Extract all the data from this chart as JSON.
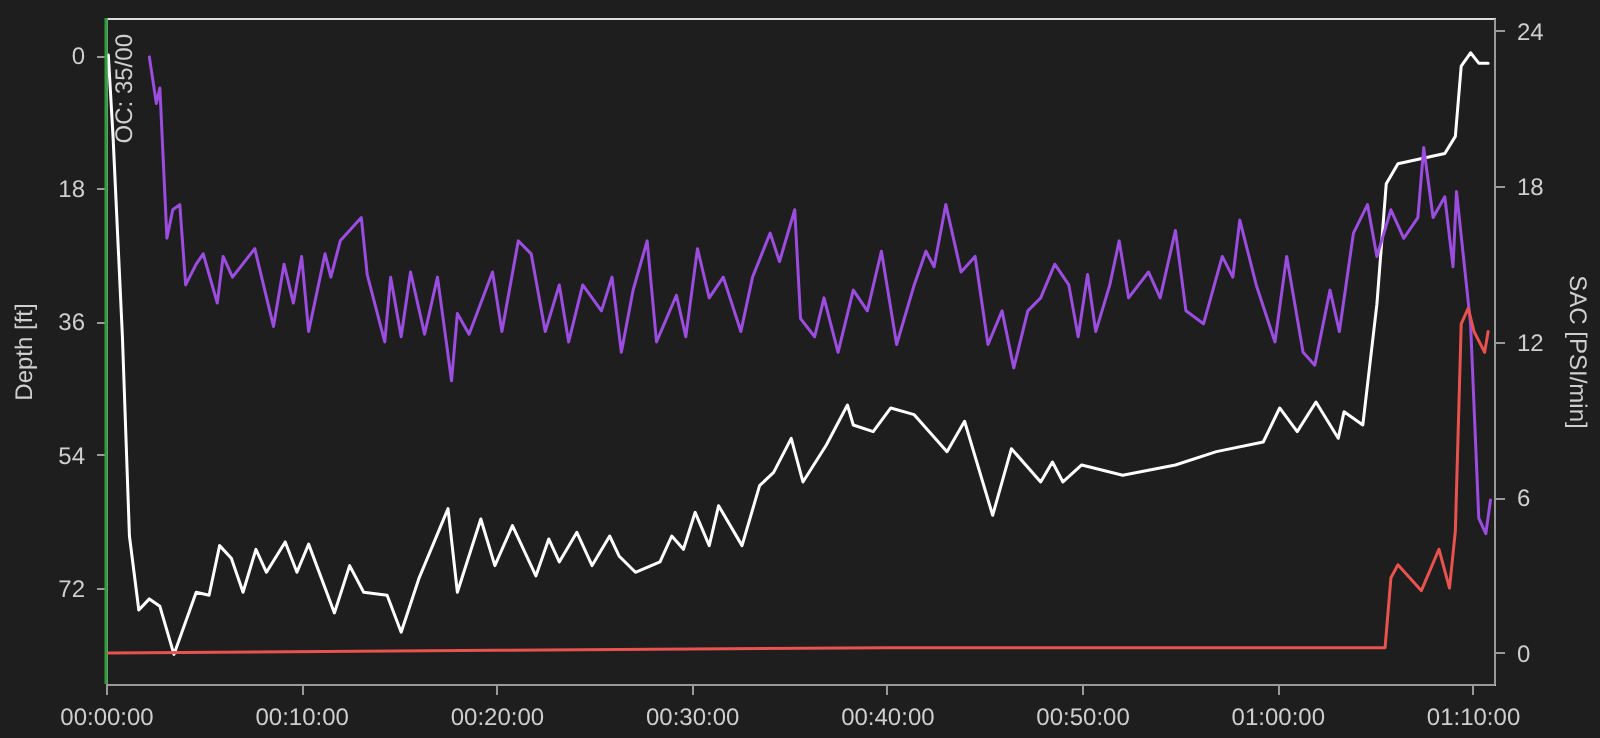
{
  "chart_data": {
    "type": "line",
    "xlabel": null,
    "ylabel": "Depth [ft]",
    "y2label": "SAC [PSI/min]",
    "xlim": [
      0,
      1.185
    ],
    "xticks": [
      {
        "value": 0,
        "label": "00:00:00"
      },
      {
        "value": 0.16667,
        "label": "00:10:00"
      },
      {
        "value": 0.33333,
        "label": "00:20:00"
      },
      {
        "value": 0.5,
        "label": "00:30:00"
      },
      {
        "value": 0.66667,
        "label": "00:40:00"
      },
      {
        "value": 0.83333,
        "label": "00:50:00"
      },
      {
        "value": 1,
        "label": "01:00:00"
      },
      {
        "value": 1.16667,
        "label": "01:10:00"
      }
    ],
    "ylim": [
      85,
      -5
    ],
    "yticks": [
      0,
      18,
      36,
      54,
      72
    ],
    "y2lim": [
      -1.2,
      24.5
    ],
    "y2ticks": [
      0,
      6,
      12,
      18,
      24
    ],
    "grid": false,
    "marker": "none",
    "line_style": "solid",
    "ref_lines": [
      {
        "axis": "x",
        "value": 0,
        "label": "OC: 35/00",
        "color": "#2e9e3a"
      }
    ],
    "series": [
      {
        "color": "#ffffff",
        "axis": "y",
        "x": [
          0.002,
          0.006,
          0.014,
          0.02,
          0.028,
          0.037,
          0.046,
          0.058,
          0.077,
          0.088,
          0.097,
          0.107,
          0.117,
          0.128,
          0.137,
          0.153,
          0.163,
          0.173,
          0.195,
          0.208,
          0.22,
          0.24,
          0.252,
          0.267,
          0.292,
          0.3,
          0.32,
          0.332,
          0.347,
          0.367,
          0.378,
          0.387,
          0.402,
          0.415,
          0.43,
          0.438,
          0.452,
          0.473,
          0.483,
          0.493,
          0.503,
          0.515,
          0.523,
          0.543,
          0.558,
          0.57,
          0.585,
          0.595,
          0.615,
          0.633,
          0.638,
          0.655,
          0.67,
          0.69,
          0.718,
          0.733,
          0.757,
          0.773,
          0.798,
          0.808,
          0.817,
          0.833,
          0.868,
          0.913,
          0.948,
          0.988,
          1.002,
          1.017,
          1.033,
          1.052,
          1.057,
          1.073,
          1.085,
          1.093,
          1.103,
          1.143,
          1.152,
          1.157,
          1.165,
          1.172,
          1.18
        ],
        "values": [
          0,
          11,
          38,
          65,
          75,
          73.5,
          74.5,
          81,
          72.6,
          73,
          66.3,
          68,
          72.6,
          66.8,
          69.9,
          65.8,
          69.9,
          66.1,
          75.4,
          69,
          72.6,
          73,
          78,
          70.8,
          61.3,
          72.6,
          62.7,
          69,
          63.6,
          70.4,
          65.4,
          68.5,
          64.5,
          69,
          65,
          67.7,
          69.9,
          68.5,
          65,
          66.8,
          61.8,
          66.3,
          60.9,
          66.3,
          58.2,
          56.4,
          51.8,
          57.7,
          52.7,
          47.3,
          50,
          50.9,
          47.7,
          48.6,
          53.6,
          49.5,
          62.2,
          53.2,
          57.7,
          55,
          57.7,
          55.4,
          56.8,
          55.4,
          53.6,
          52.3,
          47.7,
          50.9,
          46.9,
          51.8,
          48.2,
          50,
          33.7,
          17.4,
          14.7,
          13.3,
          11,
          1.5,
          -0.3,
          1.1,
          1.1
        ]
      },
      {
        "color": "#9b4de0",
        "axis": "y2",
        "x": [
          0.037,
          0.043,
          0.046,
          0.052,
          0.057,
          0.063,
          0.068,
          0.077,
          0.083,
          0.095,
          0.1,
          0.108,
          0.127,
          0.143,
          0.152,
          0.16,
          0.167,
          0.173,
          0.187,
          0.192,
          0.2,
          0.218,
          0.223,
          0.238,
          0.243,
          0.252,
          0.26,
          0.272,
          0.283,
          0.295,
          0.3,
          0.31,
          0.33,
          0.338,
          0.352,
          0.363,
          0.375,
          0.387,
          0.395,
          0.407,
          0.423,
          0.432,
          0.44,
          0.45,
          0.462,
          0.47,
          0.487,
          0.495,
          0.505,
          0.515,
          0.527,
          0.542,
          0.552,
          0.567,
          0.575,
          0.588,
          0.593,
          0.605,
          0.613,
          0.625,
          0.638,
          0.65,
          0.662,
          0.675,
          0.69,
          0.7,
          0.707,
          0.717,
          0.73,
          0.742,
          0.753,
          0.765,
          0.775,
          0.787,
          0.798,
          0.81,
          0.822,
          0.83,
          0.838,
          0.845,
          0.857,
          0.865,
          0.873,
          0.89,
          0.9,
          0.913,
          0.922,
          0.937,
          0.953,
          0.962,
          0.968,
          0.982,
          0.998,
          1.008,
          1.022,
          1.032,
          1.045,
          1.053,
          1.065,
          1.077,
          1.085,
          1.097,
          1.108,
          1.12,
          1.125,
          1.133,
          1.143,
          1.15,
          1.153,
          1.165,
          1.172,
          1.178,
          1.182
        ],
        "values": [
          23.0,
          21.2,
          21.8,
          16.0,
          17.1,
          17.3,
          14.2,
          15.0,
          15.4,
          13.5,
          15.3,
          14.5,
          15.6,
          12.6,
          15.0,
          13.5,
          15.3,
          12.4,
          15.4,
          14.5,
          15.9,
          16.8,
          14.6,
          12.0,
          14.5,
          12.2,
          14.7,
          12.3,
          14.5,
          10.5,
          13.1,
          12.3,
          14.7,
          12.4,
          15.9,
          15.4,
          12.4,
          14.2,
          12.0,
          14.2,
          13.2,
          14.5,
          11.6,
          14.0,
          15.9,
          12.0,
          13.8,
          12.2,
          15.6,
          13.7,
          14.5,
          12.4,
          14.5,
          16.2,
          15.1,
          17.1,
          12.9,
          12.2,
          13.7,
          11.6,
          14.0,
          13.2,
          15.5,
          11.9,
          14.2,
          15.5,
          14.9,
          17.3,
          14.7,
          15.3,
          11.9,
          13.2,
          11.0,
          13.2,
          13.7,
          15.0,
          14.2,
          12.2,
          14.6,
          12.4,
          14.2,
          15.9,
          13.7,
          14.7,
          13.7,
          16.3,
          13.2,
          12.7,
          15.3,
          14.5,
          16.7,
          14.2,
          12.0,
          15.3,
          11.6,
          11.1,
          14.0,
          12.4,
          16.2,
          17.3,
          15.3,
          17.1,
          16.0,
          16.8,
          19.5,
          16.8,
          17.6,
          14.9,
          17.8,
          12.7,
          5.2,
          4.6,
          5.9
        ]
      },
      {
        "color": "#e8534f",
        "axis": "y2",
        "x": [
          0.002,
          0.333,
          0.667,
          1.075,
          1.092,
          1.097,
          1.103,
          1.123,
          1.138,
          1.147,
          1.152,
          1.157,
          1.163,
          1.168,
          1.177,
          1.18
        ],
        "values": [
          0,
          0.1,
          0.2,
          0.2,
          0.2,
          2.9,
          3.4,
          2.4,
          4.0,
          2.5,
          4.7,
          12.7,
          13.3,
          12.4,
          11.6,
          12.4
        ]
      }
    ]
  }
}
